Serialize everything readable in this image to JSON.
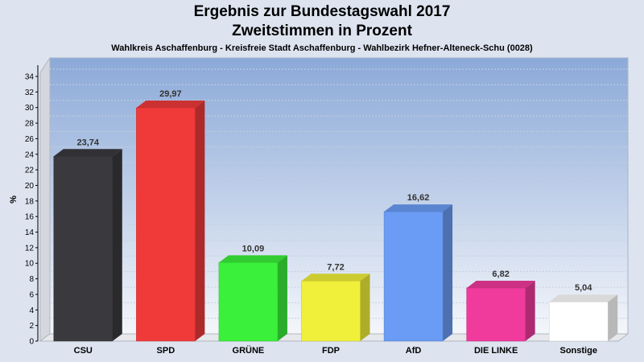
{
  "chart_data": {
    "type": "bar",
    "title": "Ergebnis zur Bundestagswahl 2017",
    "subtitle": "Zweitstimmen in Prozent",
    "caption": "Wahlkreis Aschaffenburg - Kreisfreie Stadt Aschaffenburg - Wahlbezirk Hefner-Alteneck-Schu (0028)",
    "xlabel": "",
    "ylabel": "%",
    "ylim": [
      0,
      34
    ],
    "yticks": [
      0,
      2,
      4,
      6,
      8,
      10,
      12,
      14,
      16,
      18,
      20,
      22,
      24,
      26,
      28,
      30,
      32,
      34
    ],
    "grid": true,
    "categories": [
      "CSU",
      "SPD",
      "GRÜNE",
      "FDP",
      "AfD",
      "DIE LINKE",
      "Sonstige"
    ],
    "values": [
      23.74,
      29.97,
      10.09,
      7.72,
      16.62,
      6.82,
      5.04
    ],
    "value_labels": [
      "23,74",
      "29,97",
      "10,09",
      "7,72",
      "16,62",
      "6,82",
      "5,04"
    ],
    "colors": [
      "#3a3a3e",
      "#f03a3a",
      "#3af03a",
      "#f0f03a",
      "#6a9cf5",
      "#f03a9c",
      "#ffffff"
    ]
  }
}
